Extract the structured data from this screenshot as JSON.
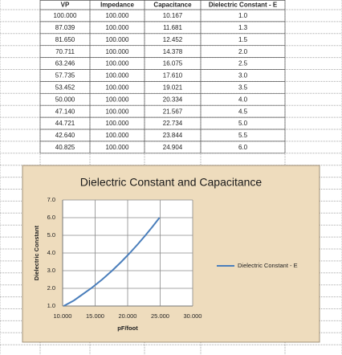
{
  "table": {
    "headers": [
      "VP",
      "Impedance",
      "Capacitance",
      "Dielectric Constant - E"
    ],
    "rows": [
      [
        "100.000",
        "100.000",
        "10.167",
        "1.0"
      ],
      [
        "87.039",
        "100.000",
        "11.681",
        "1.3"
      ],
      [
        "81.650",
        "100.000",
        "12.452",
        "1.5"
      ],
      [
        "70.711",
        "100.000",
        "14.378",
        "2.0"
      ],
      [
        "63.246",
        "100.000",
        "16.075",
        "2.5"
      ],
      [
        "57.735",
        "100.000",
        "17.610",
        "3.0"
      ],
      [
        "53.452",
        "100.000",
        "19.021",
        "3.5"
      ],
      [
        "50.000",
        "100.000",
        "20.334",
        "4.0"
      ],
      [
        "47.140",
        "100.000",
        "21.567",
        "4.5"
      ],
      [
        "44.721",
        "100.000",
        "22.734",
        "5.0"
      ],
      [
        "42.640",
        "100.000",
        "23.844",
        "5.5"
      ],
      [
        "40.825",
        "100.000",
        "24.904",
        "6.0"
      ]
    ]
  },
  "chart_data": {
    "type": "line",
    "title": "Dielectric Constant and Capacitance",
    "x_label": "pF/foot",
    "y_label": "Dielectric Constant",
    "x": [
      10.167,
      11.681,
      12.452,
      14.378,
      16.075,
      17.61,
      19.021,
      20.334,
      21.567,
      22.734,
      23.844,
      24.904
    ],
    "series": [
      {
        "name": "Dielectric Constant - E",
        "color": "#4a7ebb",
        "values": [
          1.0,
          1.3,
          1.5,
          2.0,
          2.5,
          3.0,
          3.5,
          4.0,
          4.5,
          5.0,
          5.5,
          6.0
        ]
      }
    ],
    "xlim": [
      10,
      30
    ],
    "xticks": [
      {
        "value": 10,
        "label": "10.000"
      },
      {
        "value": 15,
        "label": "15.000"
      },
      {
        "value": 20,
        "label": "20.000"
      },
      {
        "value": 25,
        "label": "25.000"
      },
      {
        "value": 30,
        "label": "30.000"
      }
    ],
    "ylim": [
      1,
      7
    ],
    "yticks": [
      {
        "value": 1,
        "label": "1.0"
      },
      {
        "value": 2,
        "label": "2.0"
      },
      {
        "value": 3,
        "label": "3.0"
      },
      {
        "value": 4,
        "label": "4.0"
      },
      {
        "value": 5,
        "label": "5.0"
      },
      {
        "value": 6,
        "label": "6.0"
      },
      {
        "value": 7,
        "label": "7.0"
      }
    ],
    "grid": true,
    "legend": "right"
  }
}
